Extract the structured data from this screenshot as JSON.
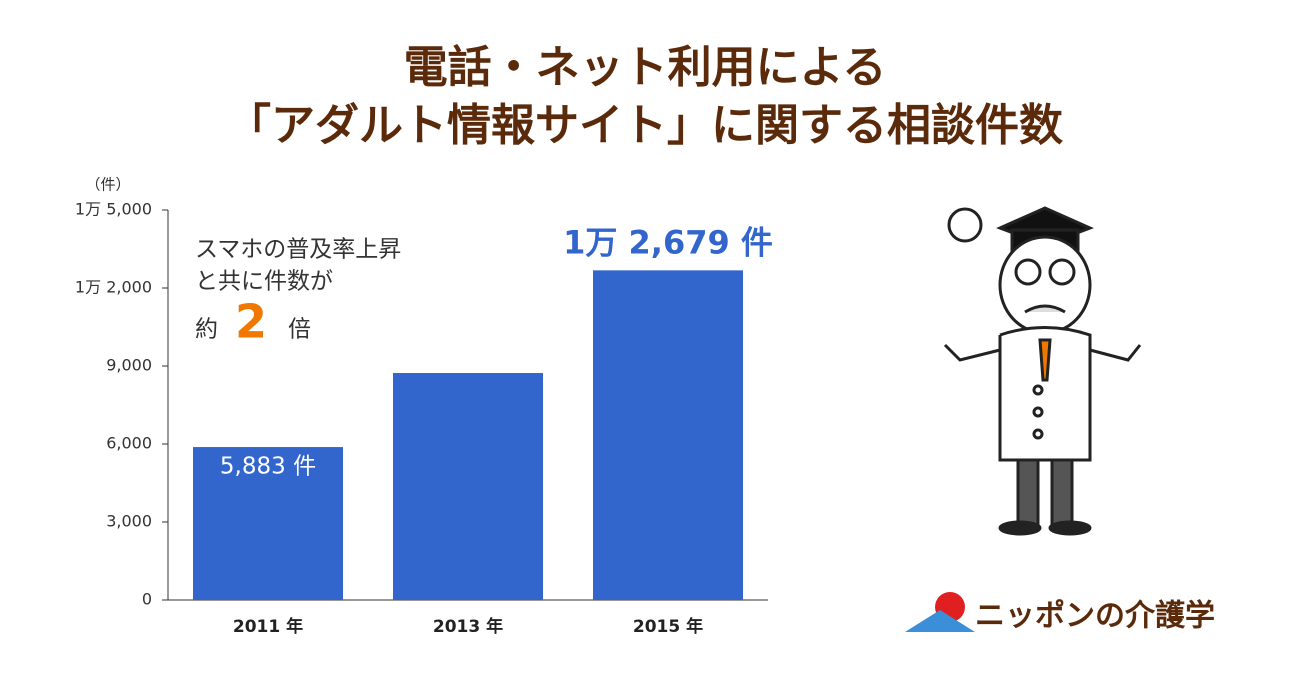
{
  "chart_data": {
    "type": "bar",
    "title": [
      "電話・ネット利用による",
      "「アダルト情報サイト」に関する相談件数"
    ],
    "y_unit": "（件）",
    "categories": [
      "2011 年",
      "2013 年",
      "2015 年"
    ],
    "values": [
      5883,
      8730,
      12679
    ],
    "value_labels": [
      "5,883 件",
      null,
      "1万 2,679 件"
    ],
    "color": "#3366cc",
    "ylim": [
      0,
      15000
    ],
    "yticks": [
      0,
      {
        "value": 3000,
        "label": "3,000"
      },
      {
        "value": 6000,
        "label": "6,000"
      },
      {
        "value": 9000,
        "label": "9,000"
      },
      {
        "value": 12000,
        "label": "1万 2,000"
      },
      {
        "value": 15000,
        "label": "1万 5,000"
      }
    ],
    "annotation": {
      "lines": [
        "スマホの普及率上昇",
        "と共に件数が"
      ],
      "prefix": "約",
      "number": "2",
      "suffix": "倍"
    },
    "logo": "ニッポンの介護学"
  }
}
